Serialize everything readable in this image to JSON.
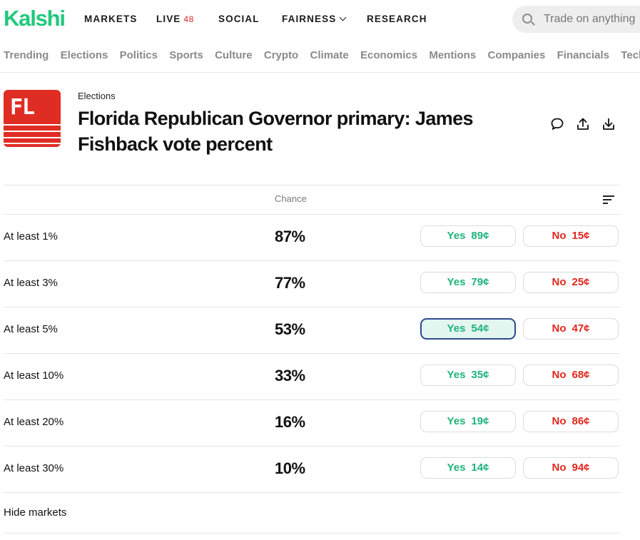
{
  "brand": {
    "name": "Kalshi",
    "color": "#1fc97b"
  },
  "nav": {
    "markets": "MARKETS",
    "live": "LIVE",
    "live_count": "48",
    "social": "SOCIAL",
    "fairness": "FAIRNESS",
    "research": "RESEARCH"
  },
  "search": {
    "placeholder": "Trade on anything"
  },
  "categories": [
    "Trending",
    "Elections",
    "Politics",
    "Sports",
    "Culture",
    "Crypto",
    "Climate",
    "Economics",
    "Mentions",
    "Companies",
    "Financials",
    "Tech"
  ],
  "market": {
    "logo_text": "FL",
    "breadcrumb": "Elections",
    "title": "Florida Republican Governor primary: James Fishback vote percent"
  },
  "table": {
    "chance_header": "Chance",
    "rows": [
      {
        "label": "At least 1%",
        "chance": "87%",
        "yes_word": "Yes",
        "yes_price": "89¢",
        "no_word": "No",
        "no_price": "15¢"
      },
      {
        "label": "At least 3%",
        "chance": "77%",
        "yes_word": "Yes",
        "yes_price": "79¢",
        "no_word": "No",
        "no_price": "25¢"
      },
      {
        "label": "At least 5%",
        "chance": "53%",
        "yes_word": "Yes",
        "yes_price": "54¢",
        "no_word": "No",
        "no_price": "47¢"
      },
      {
        "label": "At least 10%",
        "chance": "33%",
        "yes_word": "Yes",
        "yes_price": "35¢",
        "no_word": "No",
        "no_price": "68¢"
      },
      {
        "label": "At least 20%",
        "chance": "16%",
        "yes_word": "Yes",
        "yes_price": "19¢",
        "no_word": "No",
        "no_price": "86¢"
      },
      {
        "label": "At least 30%",
        "chance": "10%",
        "yes_word": "Yes",
        "yes_price": "14¢",
        "no_word": "No",
        "no_price": "94¢"
      }
    ],
    "hide_markets": "Hide markets"
  },
  "colors": {
    "yes": "#1db37a",
    "no": "#e0261d",
    "live_count": "#d9262c",
    "logo_bg": "#e02d24"
  }
}
